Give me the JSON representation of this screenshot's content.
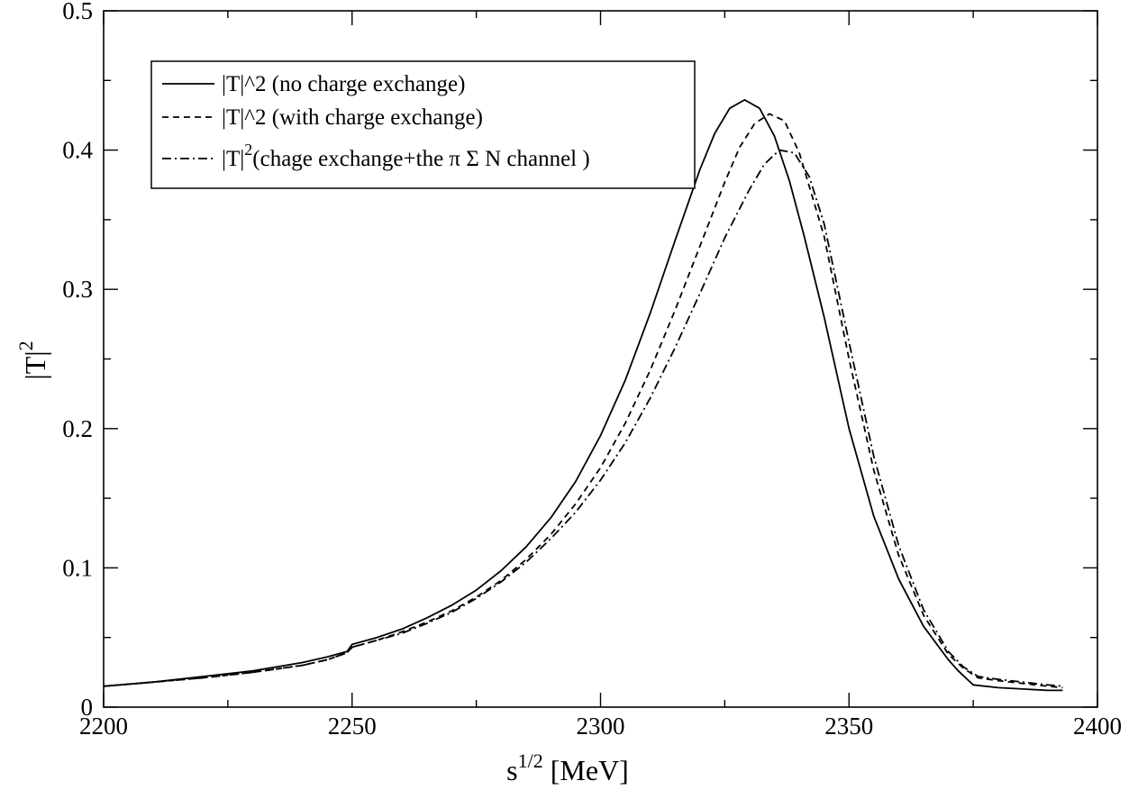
{
  "chart_data": {
    "type": "line",
    "title": "",
    "xlabel": {
      "base": "s",
      "sup": "1/2",
      "rest": " [MeV]"
    },
    "ylabel": {
      "base": "|T|",
      "sup": "2"
    },
    "xlim": [
      2200,
      2400
    ],
    "ylim": [
      0,
      0.5
    ],
    "xticks": [
      2200,
      2250,
      2300,
      2350,
      2400
    ],
    "xtick_labels": [
      "2200",
      "2250",
      "2300",
      "2350",
      "2400"
    ],
    "yticks": [
      0,
      0.1,
      0.2,
      0.3,
      0.4,
      0.5
    ],
    "ytick_labels": [
      "0",
      "0.1",
      "0.2",
      "0.3",
      "0.4",
      "0.5"
    ],
    "grid": false,
    "legend_position": "top-left",
    "series": [
      {
        "name": "|T|^2 (no charge exchange)",
        "style": "solid",
        "color": "#000000",
        "x": [
          2200,
          2210,
          2220,
          2230,
          2240,
          2245,
          2249,
          2250,
          2255,
          2260,
          2265,
          2270,
          2275,
          2280,
          2285,
          2290,
          2295,
          2300,
          2305,
          2310,
          2315,
          2320,
          2323,
          2326,
          2329,
          2332,
          2335,
          2338,
          2341,
          2345,
          2350,
          2355,
          2360,
          2365,
          2370,
          2372,
          2375,
          2380,
          2385,
          2390,
          2393
        ],
        "y": [
          0.015,
          0.018,
          0.022,
          0.026,
          0.032,
          0.036,
          0.04,
          0.045,
          0.05,
          0.056,
          0.064,
          0.073,
          0.084,
          0.098,
          0.115,
          0.136,
          0.162,
          0.195,
          0.235,
          0.283,
          0.335,
          0.386,
          0.412,
          0.43,
          0.436,
          0.43,
          0.41,
          0.378,
          0.338,
          0.28,
          0.2,
          0.137,
          0.092,
          0.058,
          0.034,
          0.026,
          0.016,
          0.014,
          0.013,
          0.012,
          0.012
        ]
      },
      {
        "name": "|T|^2 (with charge exchange)",
        "style": "dashed",
        "color": "#000000",
        "x": [
          2200,
          2210,
          2220,
          2230,
          2240,
          2245,
          2249,
          2250,
          2255,
          2260,
          2265,
          2270,
          2275,
          2280,
          2285,
          2290,
          2295,
          2300,
          2305,
          2310,
          2315,
          2320,
          2325,
          2328,
          2331,
          2334,
          2337,
          2340,
          2345,
          2350,
          2355,
          2360,
          2365,
          2370,
          2373,
          2376,
          2380,
          2385,
          2390,
          2393
        ],
        "y": [
          0.015,
          0.018,
          0.021,
          0.025,
          0.03,
          0.034,
          0.039,
          0.043,
          0.048,
          0.054,
          0.061,
          0.069,
          0.079,
          0.091,
          0.106,
          0.124,
          0.146,
          0.172,
          0.204,
          0.242,
          0.285,
          0.331,
          0.377,
          0.402,
          0.419,
          0.426,
          0.421,
          0.398,
          0.338,
          0.25,
          0.17,
          0.109,
          0.066,
          0.038,
          0.028,
          0.021,
          0.019,
          0.017,
          0.015,
          0.014
        ]
      },
      {
        "name": "|T|²(chage exchange+the  π Σ N channel )",
        "style": "dashdot",
        "color": "#000000",
        "x": [
          2200,
          2210,
          2220,
          2230,
          2240,
          2245,
          2249,
          2250,
          2255,
          2260,
          2265,
          2270,
          2275,
          2280,
          2285,
          2290,
          2295,
          2300,
          2305,
          2310,
          2315,
          2320,
          2325,
          2330,
          2333,
          2336,
          2339,
          2342,
          2345,
          2350,
          2355,
          2360,
          2365,
          2370,
          2373,
          2376,
          2380,
          2385,
          2390,
          2393
        ],
        "y": [
          0.015,
          0.018,
          0.021,
          0.025,
          0.03,
          0.034,
          0.039,
          0.043,
          0.048,
          0.053,
          0.06,
          0.068,
          0.078,
          0.09,
          0.104,
          0.121,
          0.14,
          0.163,
          0.19,
          0.222,
          0.258,
          0.297,
          0.337,
          0.372,
          0.39,
          0.4,
          0.398,
          0.381,
          0.347,
          0.262,
          0.18,
          0.116,
          0.07,
          0.04,
          0.029,
          0.022,
          0.02,
          0.018,
          0.016,
          0.015
        ]
      }
    ],
    "legend_entries": [
      {
        "type": "plain",
        "text": "|T|^2 (no charge exchange)"
      },
      {
        "type": "plain",
        "text": "|T|^2 (with charge exchange)"
      },
      {
        "type": "sup",
        "base": "|T|",
        "sup": "2",
        "rest": "(chage exchange+the  π Σ N channel )"
      }
    ]
  }
}
